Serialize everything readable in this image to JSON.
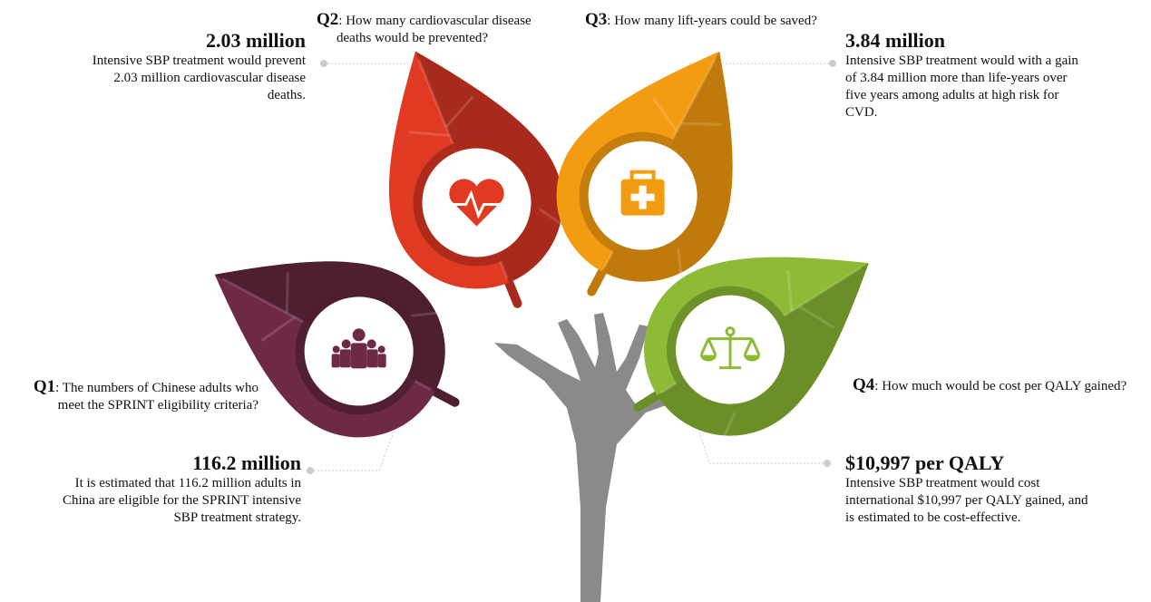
{
  "colors": {
    "red": "#e03a22",
    "red_dark": "#a82a1c",
    "orange": "#f39c12",
    "orange_dark": "#c07a0c",
    "purple": "#6e2a45",
    "purple_dark": "#4e1e31",
    "green": "#8dbb35",
    "green_dark": "#6a8e28",
    "hand": "#8a8a8a"
  },
  "q1": {
    "label": "Q1",
    "text": ": The numbers of Chinese adults who",
    "text2": "meet the SPRINT eligibility criteria?",
    "value": "116.2 million",
    "desc": "It is estimated that 116.2 million adults in China are eligible for the SPRINT intensive SBP treatment strategy.",
    "icon": "people-group-icon"
  },
  "q2": {
    "label": "Q2",
    "text": ": How many cardiovascular disease",
    "text2": "deaths would be prevented?",
    "value": "2.03 million",
    "desc": "Intensive SBP treatment would prevent 2.03 million cardiovascular disease deaths.",
    "icon": "heart-pulse-icon"
  },
  "q3": {
    "label": "Q3",
    "text": ": How many lift-years could be saved?",
    "value": "3.84 million",
    "desc": "Intensive SBP treatment would with a gain of 3.84 million more than life-years over five years among adults at high risk for CVD.",
    "icon": "medical-kit-icon"
  },
  "q4": {
    "label": "Q4",
    "text": ": How much would be cost per QALY gained?",
    "value": "$10,997 per QALY",
    "desc": "Intensive SBP treatment would cost international $10,997 per QALY gained, and is estimated to be cost-effective.",
    "icon": "scales-icon"
  }
}
